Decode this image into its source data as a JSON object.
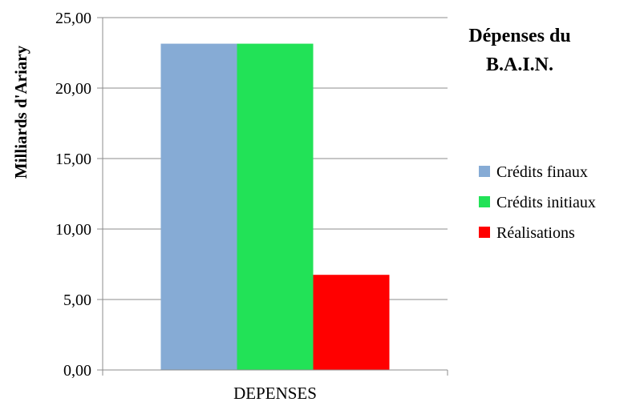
{
  "chart_data": {
    "type": "bar",
    "title_lines": [
      "Dépenses du",
      "B.A.I.N."
    ],
    "ylabel": "Milliards  d'Ariary",
    "xlabel": "",
    "categories": [
      "DEPENSES"
    ],
    "ylim": [
      0,
      25
    ],
    "yticks": [
      "0,00",
      "5,00",
      "10,00",
      "15,00",
      "20,00",
      "25,00"
    ],
    "ytick_values": [
      0,
      5,
      10,
      15,
      20,
      25
    ],
    "grid": true,
    "legend_position": "right",
    "series": [
      {
        "name": "Crédits finaux",
        "values": [
          23.15
        ],
        "color": "#86abd5"
      },
      {
        "name": "Crédits initiaux",
        "values": [
          23.15
        ],
        "color": "#22e257"
      },
      {
        "name": "Réalisations",
        "values": [
          6.75
        ],
        "color": "#ff0000"
      }
    ]
  }
}
